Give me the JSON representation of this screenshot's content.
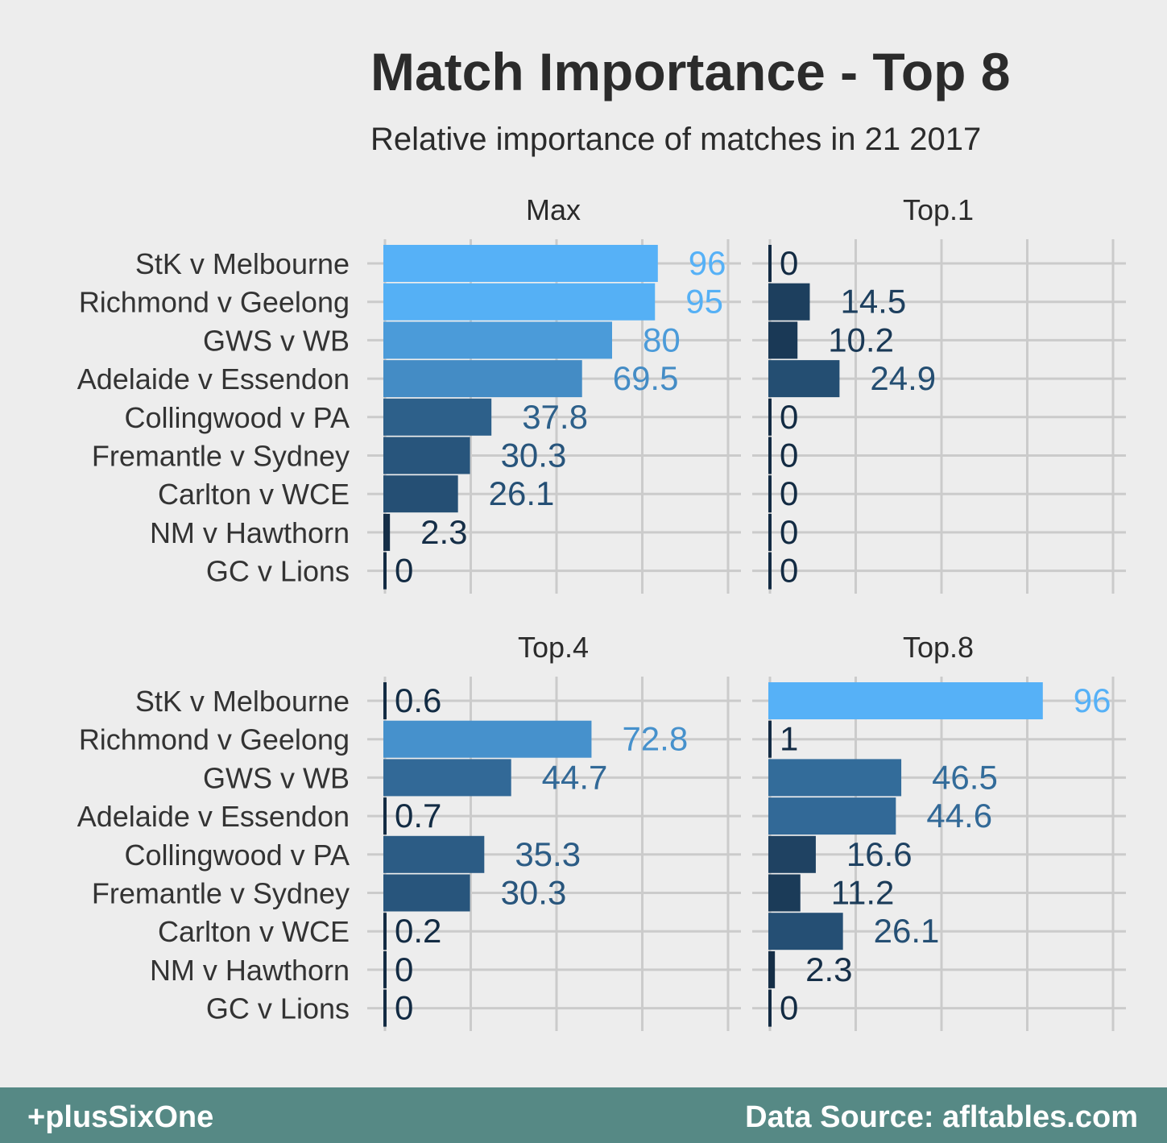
{
  "chart_data": {
    "type": "bar",
    "orientation": "horizontal",
    "title": "Match Importance - Top 8",
    "subtitle": "Relative importance of matches in 21 2017",
    "categories": [
      "StK v Melbourne",
      "Richmond v Geelong",
      "GWS v WB",
      "Adelaide v Essendon",
      "Collingwood v PA",
      "Fremantle v Sydney",
      "Carlton v WCE",
      "NM v Hawthorn",
      "GC v Lions"
    ],
    "facets": [
      {
        "name": "Max",
        "values": [
          96,
          95,
          80,
          69.5,
          37.8,
          30.3,
          26.1,
          2.3,
          0
        ],
        "labels": [
          "96",
          "95",
          "80",
          "69.5",
          "37.8",
          "30.3",
          "26.1",
          "2.3",
          "0"
        ]
      },
      {
        "name": "Top.1",
        "values": [
          0,
          14.5,
          10.2,
          24.9,
          0,
          0,
          0,
          0,
          0
        ],
        "labels": [
          "0",
          "14.5",
          "10.2",
          "24.9",
          "0",
          "0",
          "0",
          "0",
          "0"
        ]
      },
      {
        "name": "Top.4",
        "values": [
          0.6,
          72.8,
          44.7,
          0.7,
          35.3,
          30.3,
          0.2,
          0,
          0
        ],
        "labels": [
          "0.6",
          "72.8",
          "44.7",
          "0.7",
          "35.3",
          "30.3",
          "0.2",
          "0",
          "0"
        ]
      },
      {
        "name": "Top.8",
        "values": [
          96,
          1,
          46.5,
          44.6,
          16.6,
          11.2,
          26.1,
          2.3,
          0
        ],
        "labels": [
          "96",
          "1",
          "46.5",
          "44.6",
          "16.6",
          "11.2",
          "26.1",
          "2.3",
          "0"
        ]
      }
    ],
    "xlim": [
      0,
      120
    ],
    "xticks": [
      0,
      30,
      60,
      90,
      120
    ],
    "grid": true,
    "legend": "none",
    "color_scale": {
      "low": "#132B43",
      "high": "#56B1F7"
    }
  },
  "footer": {
    "brand": "+plusSixOne",
    "source": "Data Source: afltables.com"
  },
  "colors": {
    "background": "#ededed",
    "footer_bg": "#568985",
    "grid": "#cbcbcb"
  }
}
